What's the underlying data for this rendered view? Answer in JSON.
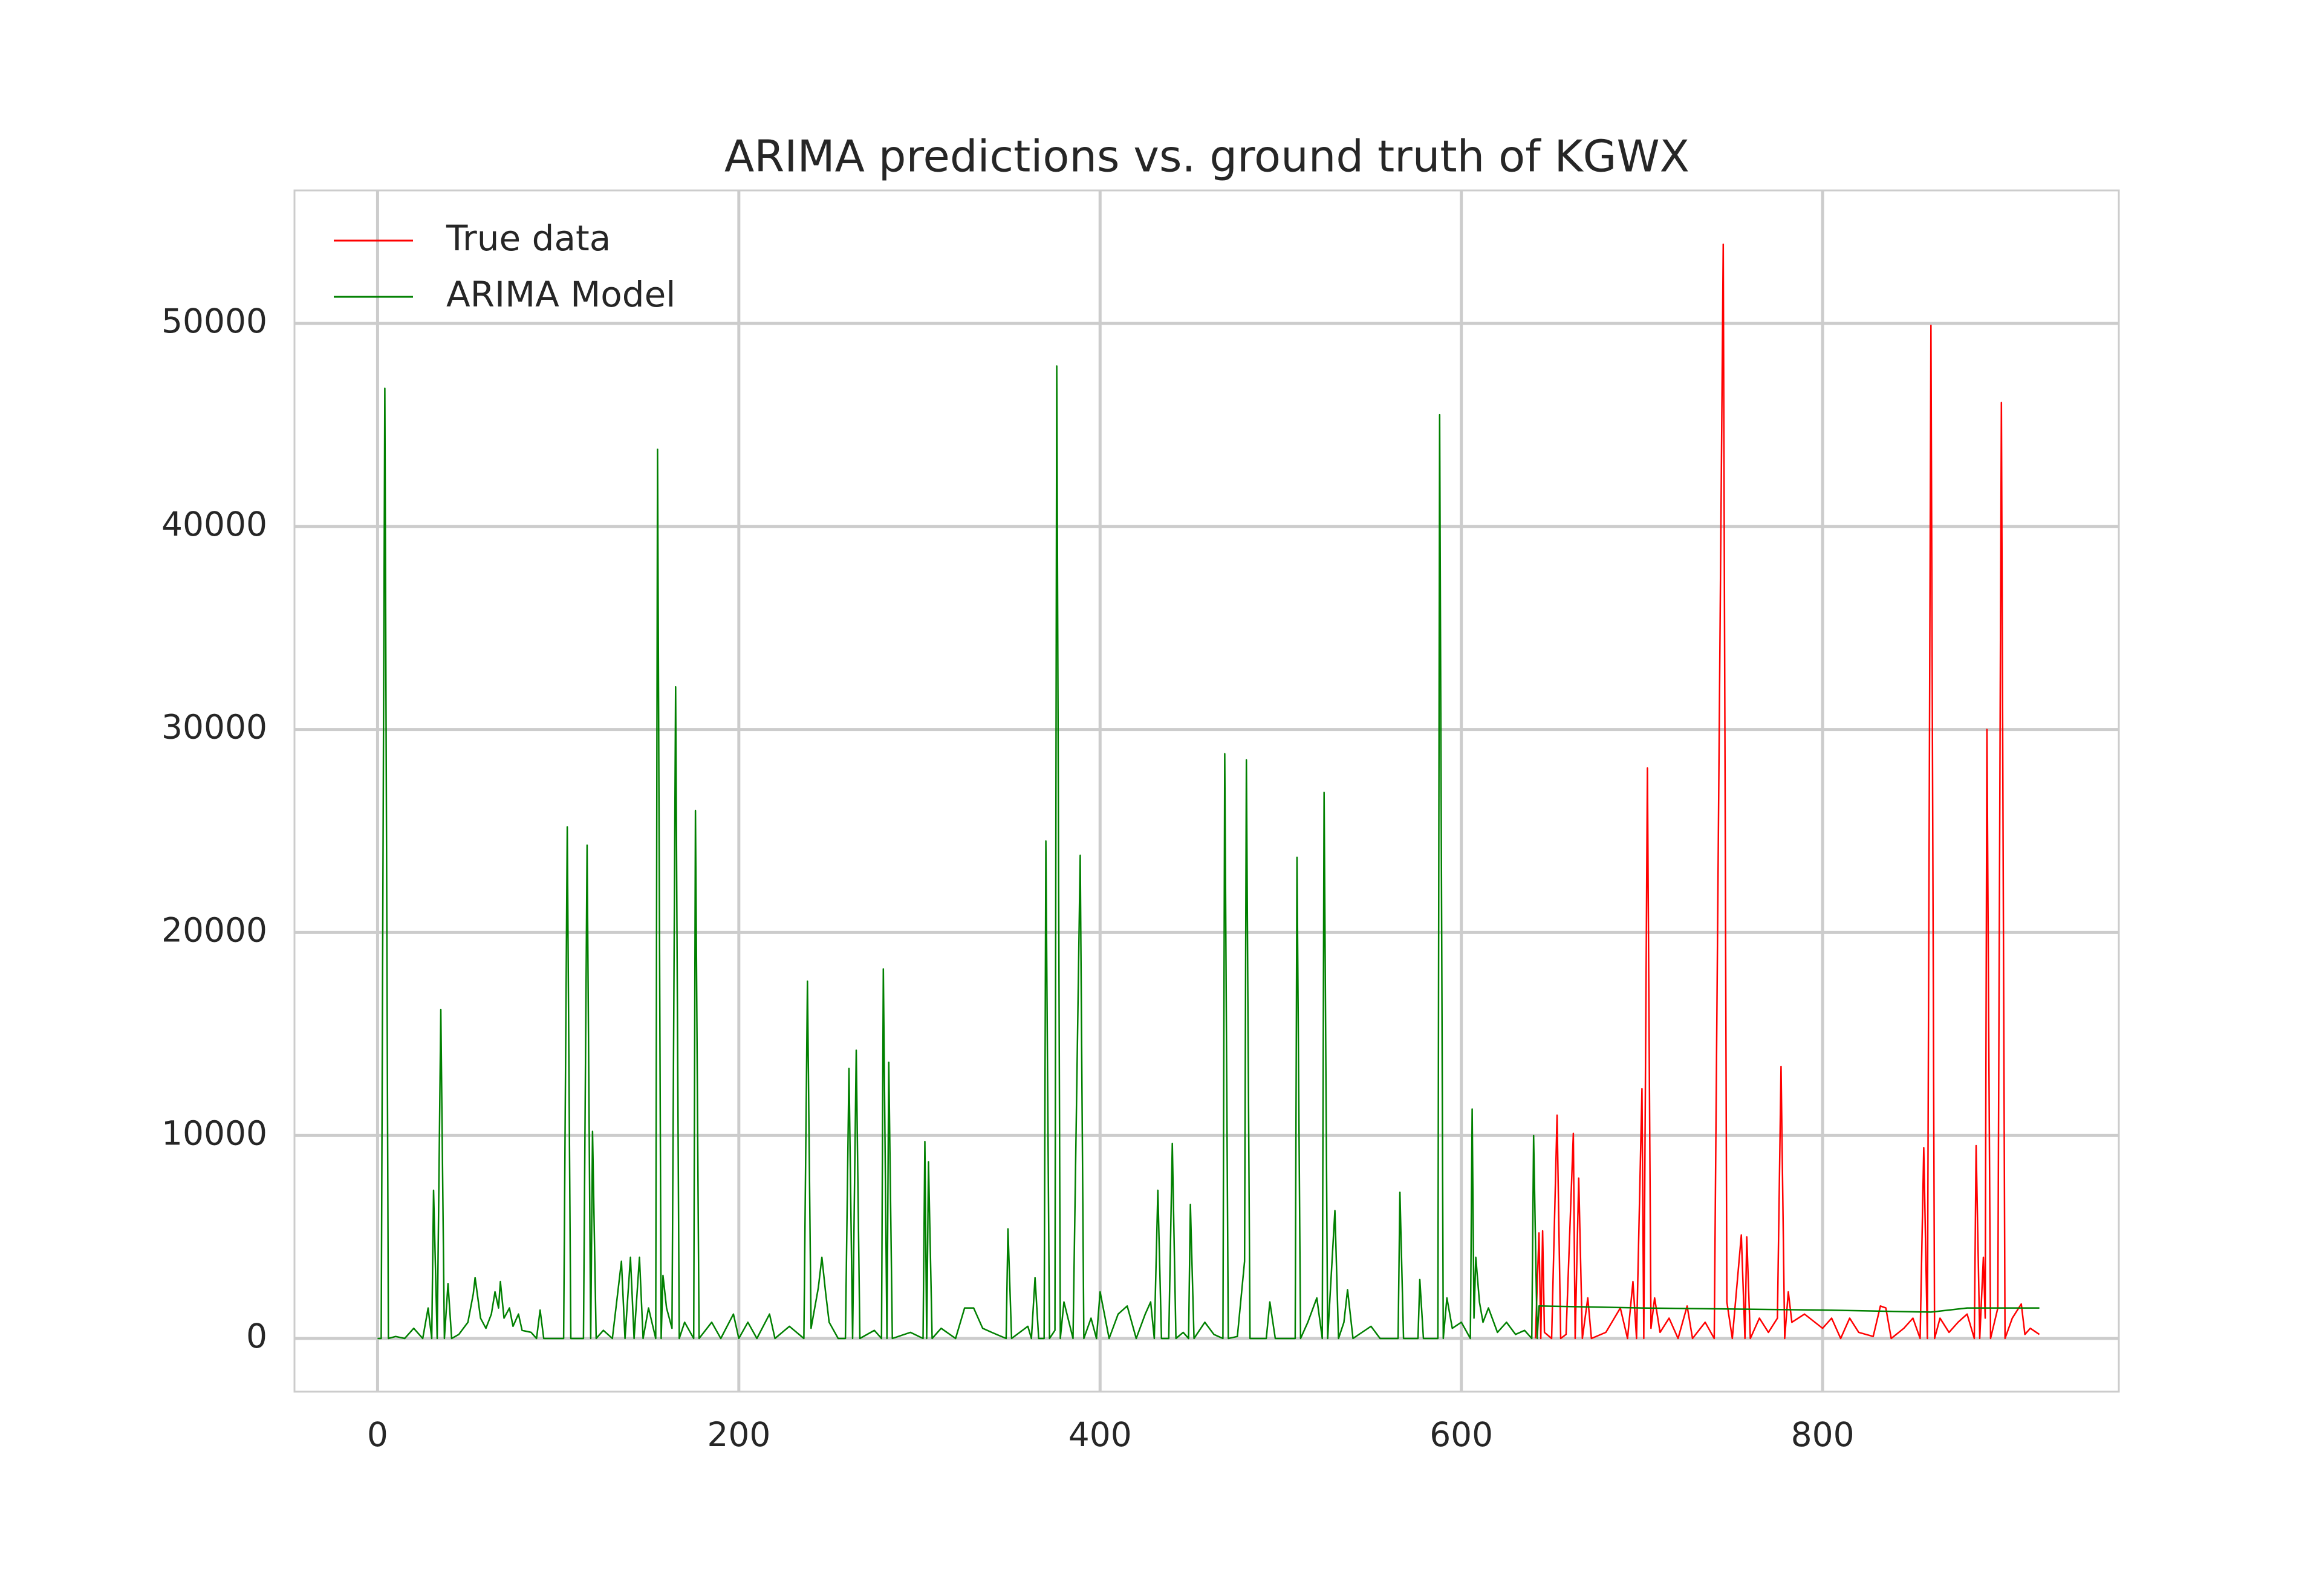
{
  "chart_data": {
    "type": "line",
    "title": "ARIMA predictions vs. ground truth of KGWX",
    "xlim": [
      -46,
      964
    ],
    "ylim": [
      -2620,
      56550
    ],
    "xticks": [
      0,
      200,
      400,
      600,
      800
    ],
    "yticks": [
      0,
      10000,
      20000,
      30000,
      40000,
      50000
    ],
    "grid": true,
    "legend": "upper left",
    "series": [
      {
        "name": "True data",
        "color": "#ff0000",
        "x": [
          641,
          643,
          644,
          645,
          646,
          650,
          653,
          655,
          658,
          662,
          663,
          665,
          667,
          670,
          672,
          680,
          688,
          692,
          695,
          697,
          700,
          701,
          703,
          705,
          707,
          710,
          715,
          720,
          725,
          728,
          735,
          740,
          745,
          747,
          750,
          755,
          757,
          758,
          760,
          765,
          770,
          775,
          777,
          779,
          781,
          783,
          790,
          800,
          805,
          810,
          815,
          820,
          828,
          832,
          835,
          838,
          845,
          850,
          854,
          856,
          858,
          860,
          862,
          865,
          870,
          875,
          880,
          884,
          885,
          887,
          889,
          890,
          891,
          893,
          897,
          899,
          901,
          905,
          910,
          912,
          915,
          920
        ],
        "values": [
          0,
          5200,
          0,
          5300,
          300,
          0,
          11000,
          0,
          200,
          10100,
          0,
          7900,
          0,
          2000,
          0,
          300,
          1500,
          0,
          2800,
          0,
          12300,
          0,
          28100,
          500,
          2000,
          300,
          1000,
          0,
          1600,
          0,
          800,
          0,
          53900,
          1800,
          0,
          5100,
          0,
          5000,
          0,
          1000,
          300,
          1000,
          13400,
          0,
          2300,
          800,
          1200,
          500,
          1000,
          0,
          1000,
          300,
          100,
          1600,
          1500,
          0,
          500,
          1000,
          0,
          9400,
          0,
          49900,
          0,
          1000,
          300,
          800,
          1200,
          0,
          9500,
          0,
          4000,
          1000,
          30000,
          0,
          1500,
          46100,
          0,
          1000,
          1700,
          200,
          500,
          200
        ]
      },
      {
        "name": "ARIMA Model",
        "color": "#008000",
        "x": [
          0,
          2,
          4,
          6,
          10,
          15,
          20,
          25,
          28,
          30,
          31,
          33,
          35,
          37,
          39,
          41,
          45,
          50,
          53,
          54,
          57,
          60,
          63,
          65,
          67,
          68,
          70,
          73,
          75,
          78,
          80,
          85,
          88,
          90,
          92,
          103,
          105,
          107,
          114,
          116,
          118,
          119,
          121,
          125,
          130,
          135,
          137,
          140,
          142,
          145,
          147,
          150,
          154,
          155,
          157,
          158,
          160,
          163,
          165,
          167,
          170,
          175,
          176,
          178,
          185,
          190,
          197,
          200,
          205,
          210,
          217,
          220,
          228,
          236,
          238,
          240,
          244,
          246,
          248,
          250,
          255,
          259,
          261,
          263,
          265,
          267,
          275,
          279,
          280,
          282,
          283,
          285,
          295,
          302,
          303,
          304,
          305,
          307,
          312,
          320,
          325,
          330,
          335,
          340,
          348,
          349,
          351,
          360,
          362,
          364,
          366,
          369,
          370,
          372,
          375,
          376,
          378,
          380,
          385,
          389,
          391,
          395,
          398,
          400,
          405,
          410,
          415,
          420,
          425,
          428,
          430,
          432,
          434,
          438,
          440,
          442,
          446,
          449,
          450,
          452,
          458,
          463,
          468,
          469,
          471,
          476,
          480,
          481,
          483,
          492,
          494,
          497,
          508,
          509,
          511,
          515,
          520,
          523,
          524,
          526,
          530,
          532,
          535,
          537,
          540,
          550,
          555,
          565,
          566,
          568,
          576,
          577,
          579,
          587,
          588,
          590,
          592,
          595,
          600,
          605,
          606,
          607,
          608,
          610,
          612,
          615,
          620,
          625,
          630,
          635,
          639,
          640,
          642,
          643,
          700,
          800,
          860,
          880,
          920
        ],
        "values": [
          0,
          0,
          46800,
          0,
          100,
          0,
          500,
          0,
          1500,
          0,
          7300,
          0,
          16200,
          0,
          2700,
          0,
          200,
          800,
          2200,
          3000,
          1000,
          500,
          1200,
          2300,
          1500,
          2800,
          1000,
          1500,
          600,
          1200,
          400,
          300,
          0,
          1400,
          0,
          0,
          25200,
          0,
          0,
          24300,
          0,
          10200,
          0,
          400,
          0,
          3800,
          0,
          4000,
          0,
          4000,
          0,
          1500,
          0,
          43800,
          0,
          3100,
          1500,
          500,
          32100,
          0,
          800,
          0,
          26000,
          0,
          800,
          0,
          1200,
          0,
          800,
          0,
          1200,
          0,
          600,
          0,
          17600,
          500,
          2500,
          4000,
          2300,
          800,
          0,
          0,
          13300,
          0,
          14200,
          0,
          400,
          0,
          18200,
          0,
          13600,
          0,
          300,
          0,
          9700,
          0,
          8700,
          0,
          500,
          0,
          1500,
          1500,
          500,
          300,
          0,
          5400,
          0,
          600,
          0,
          3000,
          0,
          0,
          24500,
          0,
          400,
          47900,
          0,
          1800,
          0,
          23800,
          0,
          1000,
          0,
          2300,
          0,
          1200,
          1600,
          0,
          1200,
          1800,
          0,
          7300,
          0,
          0,
          9600,
          0,
          300,
          0,
          6600,
          0,
          800,
          200,
          0,
          28800,
          0,
          100,
          3800,
          28500,
          0,
          0,
          1800,
          0,
          0,
          23700,
          0,
          800,
          2000,
          0,
          26900,
          0,
          6300,
          0,
          800,
          2400,
          0,
          600,
          0,
          0,
          7200,
          0,
          0,
          2900,
          0,
          0,
          45500,
          0,
          2000,
          500,
          800,
          0,
          11300,
          1000,
          4000,
          1800,
          800,
          1500,
          300,
          800,
          200,
          400,
          0,
          10000,
          0,
          1600,
          1500,
          1400,
          1300,
          1500,
          1500
        ]
      }
    ]
  }
}
